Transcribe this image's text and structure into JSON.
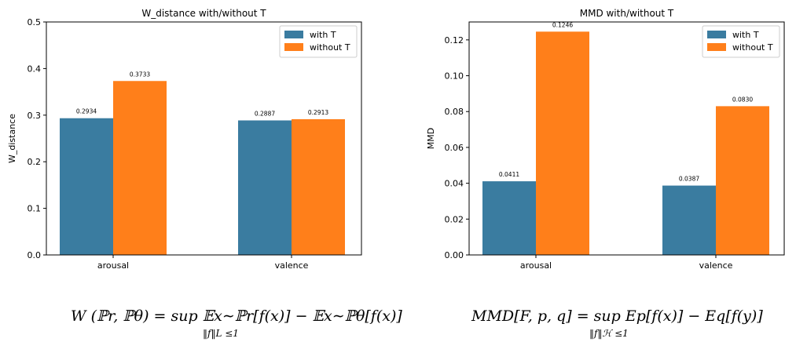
{
  "colors": {
    "with_t": "#3a7ca0",
    "without_t": "#ff7f1a"
  },
  "chart_data": [
    {
      "type": "bar",
      "title": "W_distance with/without T",
      "ylabel": "W_distance",
      "xlabel": "",
      "categories": [
        "arousal",
        "valence"
      ],
      "series": [
        {
          "name": "with T",
          "values": [
            0.2934,
            0.2887
          ],
          "labels": [
            "0.2934",
            "0.2887"
          ]
        },
        {
          "name": "without T",
          "values": [
            0.3733,
            0.2913
          ],
          "labels": [
            "0.3733",
            "0.2913"
          ]
        }
      ],
      "ylim": [
        0,
        0.5
      ],
      "yticks": [
        0.0,
        0.1,
        0.2,
        0.3,
        0.4,
        0.5
      ],
      "ytick_labels": [
        "0.0",
        "0.1",
        "0.2",
        "0.3",
        "0.4",
        "0.5"
      ],
      "legend": "top-right",
      "grid": false
    },
    {
      "type": "bar",
      "title": "MMD with/without T",
      "ylabel": "MMD",
      "xlabel": "",
      "categories": [
        "arousal",
        "valence"
      ],
      "series": [
        {
          "name": "with T",
          "values": [
            0.0411,
            0.0387
          ],
          "labels": [
            "0.0411",
            "0.0387"
          ]
        },
        {
          "name": "without T",
          "values": [
            0.1246,
            0.083
          ],
          "labels": [
            "0.1246",
            "0.0830"
          ]
        }
      ],
      "ylim": [
        0,
        0.13
      ],
      "yticks": [
        0.0,
        0.02,
        0.04,
        0.06,
        0.08,
        0.1,
        0.12
      ],
      "ytick_labels": [
        "0.00",
        "0.02",
        "0.04",
        "0.06",
        "0.08",
        "0.10",
        "0.12"
      ],
      "legend": "top-right",
      "grid": false
    }
  ],
  "formulas": {
    "w_main": "W (ℙr, ℙθ) = sup 𝔼x∼ℙr[f(x)] − 𝔼x∼ℙθ[f(x)]",
    "w_sub": "‖f‖L ≤1",
    "mmd_main": "MMD[F, p, q] = sup Ep[f(x)] − Eq[f(y)]",
    "mmd_sub": "‖f‖ℋ ≤1"
  }
}
